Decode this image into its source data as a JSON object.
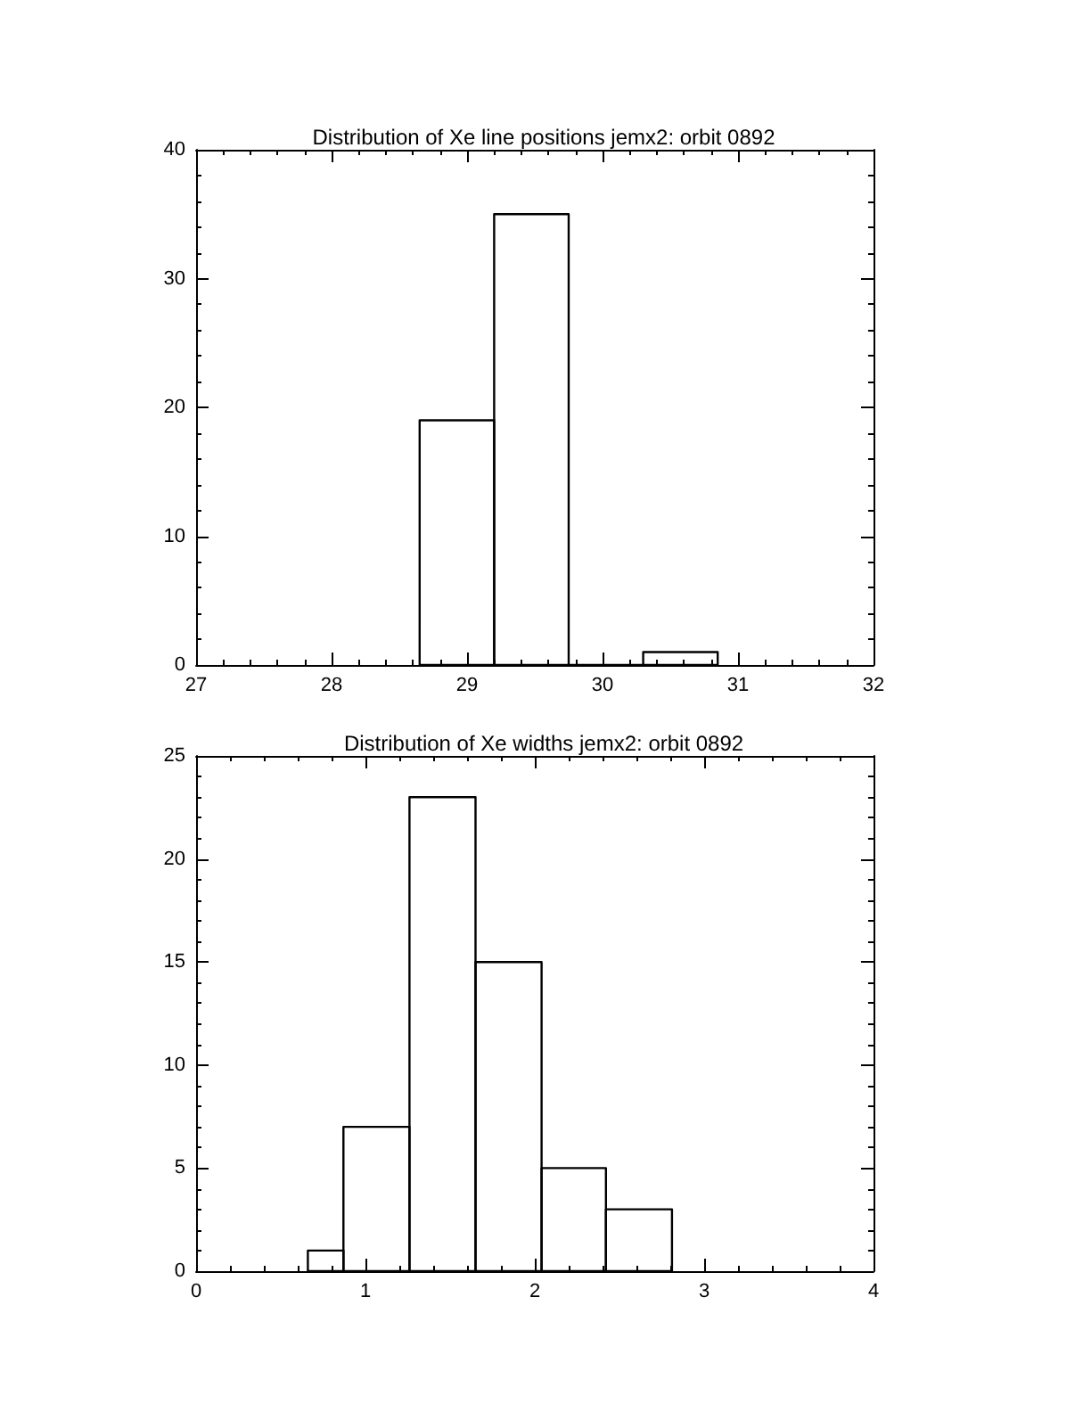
{
  "chart_data": [
    {
      "type": "histogram",
      "title": "Distribution of Xe line positions jemx2: orbit 0892",
      "bins": [
        28.65,
        29.2,
        29.75,
        30.3,
        30.85
      ],
      "values": [
        19,
        35,
        0,
        1
      ],
      "color": "#000000",
      "xlim": [
        27,
        32
      ],
      "xticks": [
        27,
        28,
        29,
        30,
        31,
        32
      ],
      "ylim": [
        0,
        40
      ],
      "yticks": [
        0,
        10,
        20,
        30,
        40
      ],
      "grid": false
    },
    {
      "type": "histogram",
      "title": "Distribution of Xe widths jemx2: orbit 0892",
      "bins": [
        0.66,
        0.87,
        1.26,
        1.65,
        2.04,
        2.42,
        2.81
      ],
      "values": [
        1,
        7,
        23,
        15,
        5,
        3
      ],
      "color": "#000000",
      "xlim": [
        0,
        4
      ],
      "xticks": [
        0,
        1,
        2,
        3,
        4
      ],
      "ylim": [
        0,
        25
      ],
      "yticks": [
        0,
        5,
        10,
        15,
        20,
        25
      ],
      "grid": false
    }
  ]
}
